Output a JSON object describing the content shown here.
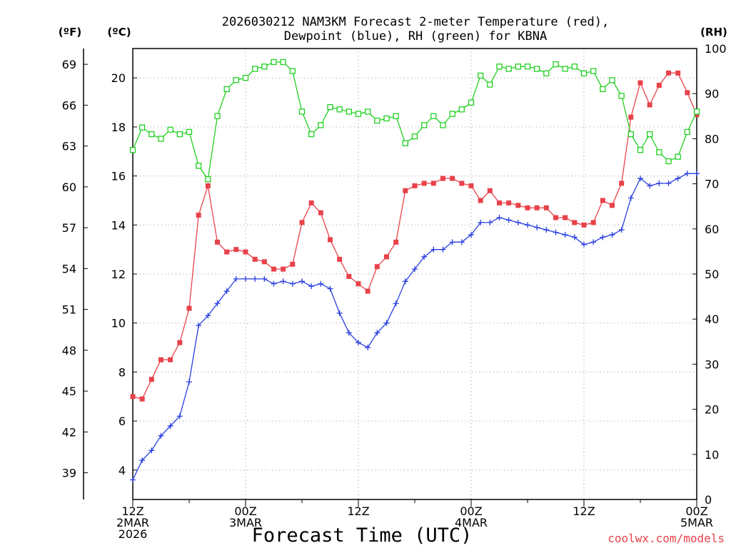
{
  "chart_data": {
    "type": "line",
    "title_lines": [
      "2026030212 NAM3KM Forecast 2-meter Temperature (red),",
      "Dewpoint (blue), RH (green) for KBNA"
    ],
    "xlabel": "Forecast Time (UTC)",
    "credit": "coolwx.com/models",
    "left_outer_unit": "(ºF)",
    "left_inner_unit": "(ºC)",
    "right_unit": "(RH)",
    "x_hours_range": [
      0,
      60
    ],
    "x_ticks": [
      {
        "hour": 0,
        "lines": [
          "12Z",
          "2MAR",
          "2026"
        ]
      },
      {
        "hour": 12,
        "lines": [
          "00Z",
          "3MAR"
        ]
      },
      {
        "hour": 24,
        "lines": [
          "12Z"
        ]
      },
      {
        "hour": 36,
        "lines": [
          "00Z",
          "4MAR"
        ]
      },
      {
        "hour": 48,
        "lines": [
          "12Z"
        ]
      },
      {
        "hour": 60,
        "lines": [
          "00Z",
          "5MAR"
        ]
      }
    ],
    "celsius_range": [
      2.8,
      21.2
    ],
    "celsius_ticks": [
      "4",
      "6",
      "8",
      "10",
      "12",
      "14",
      "16",
      "18",
      "20"
    ],
    "fahrenheit_ticks": [
      "39",
      "42",
      "45",
      "48",
      "51",
      "54",
      "57",
      "60",
      "63",
      "66",
      "69"
    ],
    "rh_range": [
      0,
      100
    ],
    "rh_ticks": [
      "0",
      "10",
      "20",
      "30",
      "40",
      "50",
      "60",
      "70",
      "80",
      "90",
      "100"
    ],
    "colors": {
      "temperature": "#e8424a",
      "dewpoint": "#2a3fe0",
      "rh": "#22d022",
      "grid": "#9a9a9a"
    },
    "series": [
      {
        "name": "Temperature",
        "unit": "C",
        "marker": "filled-square",
        "x": [
          0,
          1,
          2,
          3,
          4,
          5,
          6,
          7,
          8,
          9,
          10,
          11,
          12,
          13,
          14,
          15,
          16,
          17,
          18,
          19,
          20,
          21,
          22,
          23,
          24,
          25,
          26,
          27,
          28,
          29,
          30,
          31,
          32,
          33,
          34,
          35,
          36,
          37,
          38,
          39,
          40,
          41,
          42,
          43,
          44,
          45,
          46,
          47,
          48,
          49,
          50,
          51,
          52,
          53,
          54,
          55,
          56,
          57,
          58,
          59,
          60
        ],
        "values": [
          7.0,
          6.9,
          7.7,
          8.5,
          8.5,
          9.2,
          10.6,
          14.4,
          15.6,
          13.3,
          12.9,
          13.0,
          12.9,
          12.6,
          12.5,
          12.2,
          12.2,
          12.4,
          14.1,
          14.9,
          14.5,
          13.4,
          12.6,
          11.9,
          11.6,
          11.3,
          12.3,
          12.7,
          13.3,
          15.4,
          15.6,
          15.7,
          15.7,
          15.9,
          15.9,
          15.7,
          15.6,
          15.0,
          15.4,
          14.9,
          14.9,
          14.8,
          14.7,
          14.7,
          14.7,
          14.3,
          14.3,
          14.1,
          14.0,
          14.1,
          15.0,
          14.8,
          15.7,
          18.4,
          19.8,
          18.9,
          19.7,
          20.2,
          20.2,
          19.4,
          18.5
        ]
      },
      {
        "name": "Dewpoint",
        "unit": "C",
        "marker": "plus",
        "x": [
          0,
          1,
          2,
          3,
          4,
          5,
          6,
          7,
          8,
          9,
          10,
          11,
          12,
          13,
          14,
          15,
          16,
          17,
          18,
          19,
          20,
          21,
          22,
          23,
          24,
          25,
          26,
          27,
          28,
          29,
          30,
          31,
          32,
          33,
          34,
          35,
          36,
          37,
          38,
          39,
          40,
          41,
          42,
          43,
          44,
          45,
          46,
          47,
          48,
          49,
          50,
          51,
          52,
          53,
          54,
          55,
          56,
          57,
          58,
          59,
          60
        ],
        "values": [
          3.6,
          4.4,
          4.8,
          5.4,
          5.8,
          6.2,
          7.6,
          9.9,
          10.3,
          10.8,
          11.3,
          11.8,
          11.8,
          11.8,
          11.8,
          11.6,
          11.7,
          11.6,
          11.7,
          11.5,
          11.6,
          11.4,
          10.4,
          9.6,
          9.2,
          9.0,
          9.6,
          10.0,
          10.8,
          11.7,
          12.2,
          12.7,
          13.0,
          13.0,
          13.3,
          13.3,
          13.6,
          14.1,
          14.1,
          14.3,
          14.2,
          14.1,
          14.0,
          13.9,
          13.8,
          13.7,
          13.6,
          13.5,
          13.2,
          13.3,
          13.5,
          13.6,
          13.8,
          15.1,
          15.9,
          15.6,
          15.7,
          15.7,
          15.9,
          16.1,
          16.1
        ]
      },
      {
        "name": "RH",
        "unit": "%",
        "marker": "open-square",
        "x": [
          0,
          1,
          2,
          3,
          4,
          5,
          6,
          7,
          8,
          9,
          10,
          11,
          12,
          13,
          14,
          15,
          16,
          17,
          18,
          19,
          20,
          21,
          22,
          23,
          24,
          25,
          26,
          27,
          28,
          29,
          30,
          31,
          32,
          33,
          34,
          35,
          36,
          37,
          38,
          39,
          40,
          41,
          42,
          43,
          44,
          45,
          46,
          47,
          48,
          49,
          50,
          51,
          52,
          53,
          54,
          55,
          56,
          57,
          58,
          59,
          60
        ],
        "values": [
          77.5,
          82.5,
          81.0,
          80.0,
          82.0,
          81.0,
          81.5,
          74.0,
          71.0,
          85.0,
          91.0,
          93.0,
          93.5,
          95.5,
          96.0,
          97.0,
          97.0,
          95.0,
          86.0,
          81.0,
          83.0,
          87.0,
          86.5,
          86.0,
          85.5,
          86.0,
          84.0,
          84.5,
          85.0,
          79.0,
          80.5,
          83.0,
          85.0,
          83.0,
          85.5,
          86.5,
          88.0,
          94.0,
          92.0,
          96.0,
          95.5,
          96.0,
          96.0,
          95.5,
          94.5,
          96.5,
          95.5,
          96.0,
          94.5,
          95.0,
          91.0,
          93.0,
          89.5,
          81.0,
          77.5,
          81.0,
          77.0,
          75.0,
          76.0,
          81.5,
          86.0
        ]
      }
    ]
  }
}
